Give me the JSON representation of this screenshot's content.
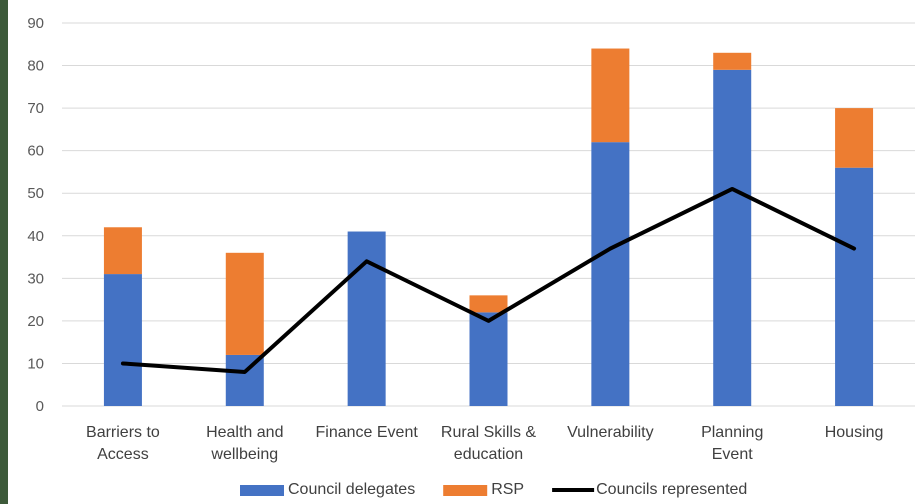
{
  "chart_data": {
    "type": "bar",
    "stacked": true,
    "categories": [
      [
        "Barriers to",
        "Access"
      ],
      [
        "Health and",
        "wellbeing"
      ],
      [
        "Finance Event"
      ],
      [
        "Rural Skills &",
        "education"
      ],
      [
        "Vulnerability"
      ],
      [
        "Planning",
        "Event"
      ],
      [
        "Housing"
      ]
    ],
    "series": [
      {
        "name": "Council delegates",
        "kind": "bar",
        "color": "#4472c4",
        "values": [
          31,
          12,
          41,
          22,
          62,
          79,
          56
        ]
      },
      {
        "name": "RSP",
        "kind": "bar",
        "color": "#ed7d31",
        "values": [
          11,
          24,
          0,
          4,
          22,
          4,
          14
        ]
      },
      {
        "name": "Councils represented",
        "kind": "line",
        "color": "#000000",
        "values": [
          10,
          8,
          34,
          20,
          37,
          51,
          37
        ]
      }
    ],
    "ylim": [
      0,
      90
    ],
    "yticks": [
      0,
      10,
      20,
      30,
      40,
      50,
      60,
      70,
      80,
      90
    ],
    "grid": true,
    "legend_position": "bottom"
  }
}
